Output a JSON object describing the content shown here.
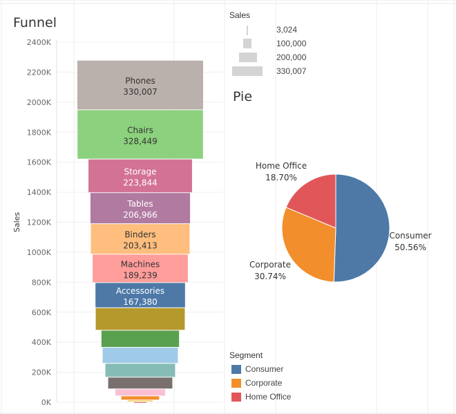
{
  "colors": {
    "consumer": "#4e79a7",
    "corporate": "#f28e2b",
    "home_office": "#e15759"
  },
  "chart_data": [
    {
      "type": "funnel",
      "title": "Funnel",
      "ylabel": "Sales",
      "ylim": [
        0,
        2400000
      ],
      "yticks": [
        "0K",
        "200K",
        "400K",
        "600K",
        "800K",
        "1000K",
        "1200K",
        "1400K",
        "1600K",
        "1800K",
        "2000K",
        "2200K",
        "2400K"
      ],
      "grid": true,
      "segments": [
        {
          "name": "Phones",
          "label": "330,007",
          "value": 330007,
          "color": "#bab0ac",
          "text_color": "#333333"
        },
        {
          "name": "Chairs",
          "label": "328,449",
          "value": 328449,
          "color": "#8cd17d",
          "text_color": "#333333"
        },
        {
          "name": "Storage",
          "label": "223,844",
          "value": 223844,
          "color": "#d37295",
          "text_color": "#ffffff"
        },
        {
          "name": "Tables",
          "label": "206,966",
          "value": 206966,
          "color": "#b07aa1",
          "text_color": "#ffffff"
        },
        {
          "name": "Binders",
          "label": "203,413",
          "value": 203413,
          "color": "#ffbe7d",
          "text_color": "#333333"
        },
        {
          "name": "Machines",
          "label": "189,239",
          "value": 189239,
          "color": "#ff9d9a",
          "text_color": "#333333"
        },
        {
          "name": "Accessories",
          "label": "167,380",
          "value": 167380,
          "color": "#4e79a7",
          "text_color": "#ffffff"
        },
        {
          "name": "",
          "label": "",
          "value": 150000,
          "color": "#b6992d",
          "text_color": "#333333"
        },
        {
          "name": "",
          "label": "",
          "value": 114000,
          "color": "#59a14f",
          "text_color": "#333333"
        },
        {
          "name": "",
          "label": "",
          "value": 107000,
          "color": "#a0cbe8",
          "text_color": "#333333"
        },
        {
          "name": "",
          "label": "",
          "value": 92000,
          "color": "#86bcb6",
          "text_color": "#333333"
        },
        {
          "name": "",
          "label": "",
          "value": 78000,
          "color": "#79706e",
          "text_color": "#333333"
        },
        {
          "name": "",
          "label": "",
          "value": 47000,
          "color": "#fabfd2",
          "text_color": "#333333"
        },
        {
          "name": "",
          "label": "",
          "value": 27000,
          "color": "#f28e2b",
          "text_color": "#333333"
        },
        {
          "name": "",
          "label": "",
          "value": 12000,
          "color": "#f1ce63",
          "text_color": "#333333"
        },
        {
          "name": "",
          "label": "",
          "value": 3024,
          "color": "#e15759",
          "text_color": "#333333"
        }
      ]
    },
    {
      "type": "pie",
      "title": "Pie",
      "slices": [
        {
          "name": "Consumer",
          "label": "Consumer",
          "value": 50.56,
          "pct_label": "50.56%",
          "color": "#4e79a7"
        },
        {
          "name": "Corporate",
          "label": "Corporate",
          "value": 30.74,
          "pct_label": "30.74%",
          "color": "#f28e2b"
        },
        {
          "name": "Home Office",
          "label": "Home Office",
          "value": 18.7,
          "pct_label": "18.70%",
          "color": "#e15759"
        }
      ]
    }
  ],
  "size_legend": {
    "title": "Sales",
    "items": [
      {
        "label": "3,024",
        "value": 3024
      },
      {
        "label": "100,000",
        "value": 100000
      },
      {
        "label": "200,000",
        "value": 200000
      },
      {
        "label": "330,007",
        "value": 330007
      }
    ]
  },
  "segment_legend": {
    "title": "Segment",
    "items": [
      {
        "label": "Consumer",
        "color": "#4e79a7"
      },
      {
        "label": "Corporate",
        "color": "#f28e2b"
      },
      {
        "label": "Home Office",
        "color": "#e15759"
      }
    ]
  }
}
